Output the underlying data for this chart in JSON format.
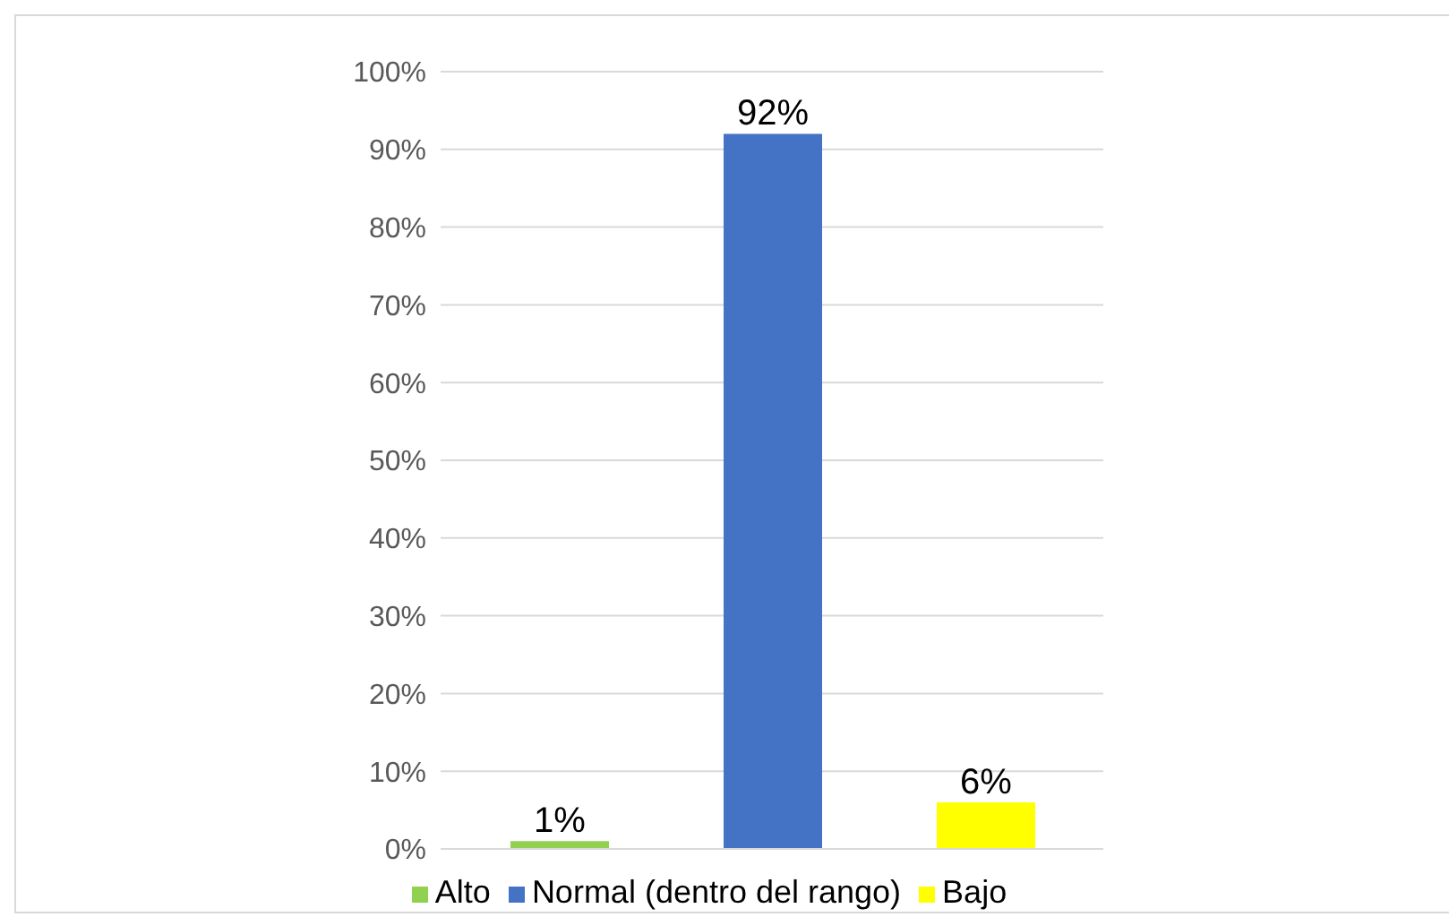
{
  "chart_data": {
    "type": "bar",
    "categories": [
      null
    ],
    "series": [
      {
        "name": "Alto",
        "color": "#92d050",
        "values": [
          1
        ],
        "value_labels": [
          "1%"
        ]
      },
      {
        "name": "Normal (dentro del rango)",
        "color": "#4472c4",
        "values": [
          92
        ],
        "value_labels": [
          "92%"
        ]
      },
      {
        "name": "Bajo",
        "color": "#ffff00",
        "values": [
          6
        ],
        "value_labels": [
          "6%"
        ]
      }
    ],
    "ylim": [
      0,
      100
    ],
    "yticks": [
      {
        "value": 0,
        "label": "0%"
      },
      {
        "value": 10,
        "label": "10%"
      },
      {
        "value": 20,
        "label": "20%"
      },
      {
        "value": 30,
        "label": "30%"
      },
      {
        "value": 40,
        "label": "40%"
      },
      {
        "value": 50,
        "label": "50%"
      },
      {
        "value": 60,
        "label": "60%"
      },
      {
        "value": 70,
        "label": "70%"
      },
      {
        "value": 80,
        "label": "80%"
      },
      {
        "value": 90,
        "label": "90%"
      },
      {
        "value": 100,
        "label": "100%"
      }
    ],
    "grid": "y",
    "legend": "bottom"
  }
}
